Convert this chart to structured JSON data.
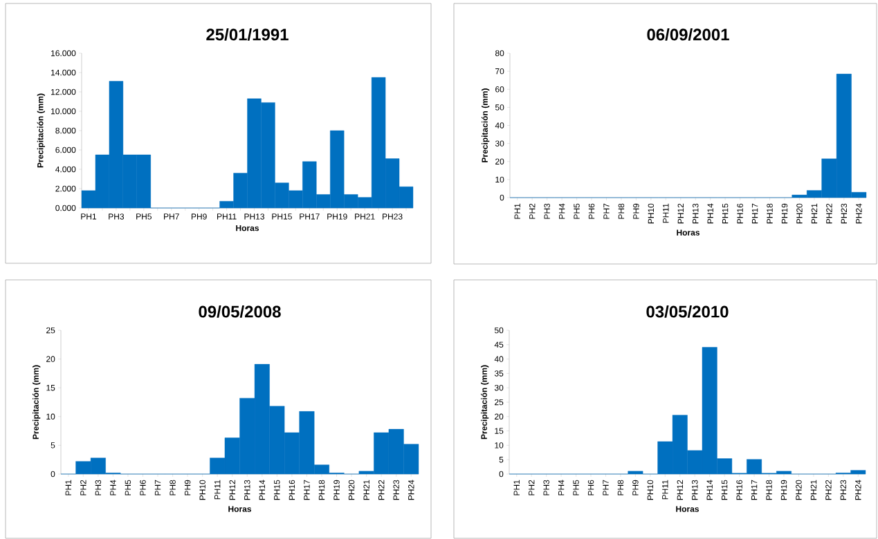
{
  "chart_data": [
    {
      "type": "bar",
      "title": "25/01/1991",
      "xlabel": "Horas",
      "ylabel": "Precipitación  (mm)",
      "color": "#0070c0",
      "categories": [
        "PH1",
        null,
        "PH3",
        null,
        "PH5",
        null,
        "PH7",
        null,
        "PH9",
        null,
        "PH11",
        null,
        "PH13",
        null,
        "PH15",
        null,
        "PH17",
        null,
        "PH19",
        null,
        "PH21",
        null,
        "PH23",
        null
      ],
      "values": [
        1.8,
        5.5,
        13.1,
        5.5,
        5.5,
        0,
        0,
        0,
        0,
        0,
        0.7,
        3.6,
        11.3,
        10.9,
        2.6,
        1.8,
        4.8,
        1.4,
        8.0,
        1.4,
        1.1,
        13.5,
        5.1,
        2.2
      ],
      "ylim": [
        0,
        16
      ],
      "yticks": [
        {
          "value": 0,
          "label": "0.000"
        },
        {
          "value": 2,
          "label": "2.000"
        },
        {
          "value": 4,
          "label": "4.000"
        },
        {
          "value": 6,
          "label": "6.000"
        },
        {
          "value": 8,
          "label": "8.000"
        },
        {
          "value": 10,
          "label": "10.000"
        },
        {
          "value": 12,
          "label": "12.000"
        },
        {
          "value": 14,
          "label": "14.000"
        },
        {
          "value": 16,
          "label": "16.000"
        }
      ]
    },
    {
      "type": "bar",
      "title": "06/09/2001",
      "xlabel": "Horas",
      "ylabel": "Precipitación  (mm)",
      "color": "#0070c0",
      "categories": [
        "PH1",
        "PH2",
        "PH3",
        "PH4",
        "PH5",
        "PH6",
        "PH7",
        "PH8",
        "PH9",
        "PH10",
        "PH11",
        "PH12",
        "PH13",
        "PH14",
        "PH15",
        "PH16",
        "PH17",
        "PH18",
        "PH19",
        "PH20",
        "PH21",
        "PH22",
        "PH23",
        "PH24"
      ],
      "values": [
        0,
        0,
        0,
        0,
        0,
        0,
        0,
        0,
        0,
        0,
        0,
        0,
        0,
        0,
        0,
        0,
        0,
        0,
        0,
        1.5,
        4,
        21.5,
        68.5,
        3
      ],
      "ylim": [
        0,
        80
      ],
      "yticks": [
        0,
        10,
        20,
        30,
        40,
        50,
        60,
        70,
        80
      ]
    },
    {
      "type": "bar",
      "title": "09/05/2008",
      "xlabel": "Horas",
      "ylabel": "Precipitación  (mm)",
      "color": "#0070c0",
      "categories": [
        "PH1",
        "PH2",
        "PH3",
        "PH4",
        "PH5",
        "PH6",
        "PH7",
        "PH8",
        "PH9",
        "PH10",
        "PH11",
        "PH12",
        "PH13",
        "PH14",
        "PH15",
        "PH16",
        "PH17",
        "PH18",
        "PH19",
        "PH20",
        "PH21",
        "PH22",
        "PH23",
        "PH24"
      ],
      "values": [
        0,
        2.2,
        2.8,
        0.2,
        0,
        0,
        0,
        0,
        0,
        0,
        2.8,
        6.3,
        13.2,
        19.1,
        11.8,
        7.2,
        10.9,
        1.6,
        0.2,
        0,
        0.5,
        7.2,
        7.8,
        5.2
      ],
      "ylim": [
        0,
        25
      ],
      "yticks": [
        0,
        5,
        10,
        15,
        20,
        25
      ]
    },
    {
      "type": "bar",
      "title": "03/05/2010",
      "xlabel": "Horas",
      "ylabel": "Precipitación  (mm)",
      "color": "#0070c0",
      "categories": [
        "PH1",
        "PH2",
        "PH3",
        "PH4",
        "PH5",
        "PH6",
        "PH7",
        "PH8",
        "PH9",
        "PH10",
        "PH11",
        "PH12",
        "PH13",
        "PH14",
        "PH15",
        "PH16",
        "PH17",
        "PH18",
        "PH19",
        "PH20",
        "PH21",
        "PH22",
        "PH23",
        "PH24"
      ],
      "values": [
        0,
        0,
        0,
        0,
        0,
        0,
        0,
        0,
        1,
        0,
        11.3,
        20.5,
        8.2,
        44.1,
        5.4,
        0.3,
        5.1,
        0.3,
        1,
        0,
        0,
        0,
        0.4,
        1.3
      ],
      "ylim": [
        0,
        50
      ],
      "yticks": [
        0,
        5,
        10,
        15,
        20,
        25,
        30,
        35,
        40,
        45,
        50
      ]
    }
  ]
}
